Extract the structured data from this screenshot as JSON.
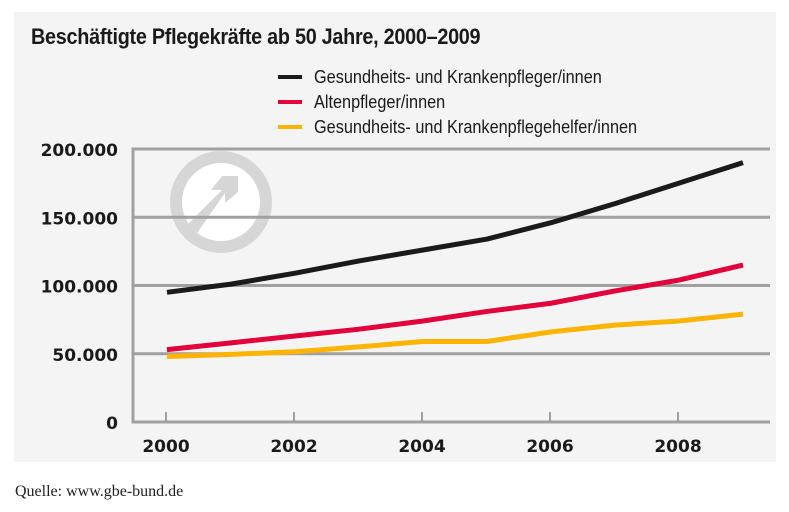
{
  "chart_data": {
    "type": "line",
    "title": "Beschäftigte Pflegekräfte ab 50 Jahre, 2000–2009",
    "xlabel": "",
    "ylabel": "",
    "x": [
      2000,
      2001,
      2002,
      2003,
      2004,
      2005,
      2006,
      2007,
      2008,
      2009
    ],
    "xlim": [
      2000,
      2009
    ],
    "ylim": [
      0,
      200000
    ],
    "x_ticks": [
      2000,
      2002,
      2004,
      2006,
      2008
    ],
    "x_tick_labels": [
      "2000",
      "2002",
      "2004",
      "2006",
      "2008"
    ],
    "y_ticks": [
      0,
      50000,
      100000,
      150000,
      200000
    ],
    "y_tick_labels": [
      "0",
      "50.000",
      "100.000",
      "150.000",
      "200.000"
    ],
    "grid": true,
    "legend_position": "top-right",
    "series": [
      {
        "name": "Gesundheits- und Krankenpfleger/innen",
        "color": "#1a1a1a",
        "values": [
          95000,
          101000,
          109000,
          118000,
          126000,
          134000,
          146000,
          160000,
          175000,
          190000
        ]
      },
      {
        "name": "Altenpfleger/innen",
        "color": "#e2003d",
        "values": [
          53000,
          58000,
          63000,
          68000,
          74000,
          81000,
          87000,
          96000,
          104000,
          115000
        ]
      },
      {
        "name": "Gesundheits- und Krankenpflegehelfer/innen",
        "color": "#ffb400",
        "values": [
          48000,
          49500,
          51500,
          55000,
          59000,
          59000,
          66000,
          71000,
          74000,
          79000
        ]
      }
    ]
  },
  "source": "Quelle: www.gbe-bund.de",
  "watermark_icon": "arrow-up-right-circle-icon"
}
